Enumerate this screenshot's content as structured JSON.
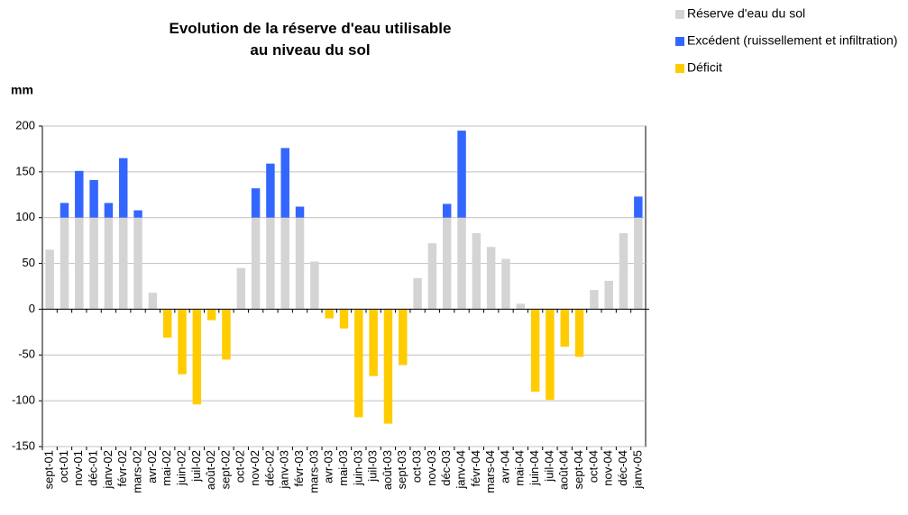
{
  "chart_data": {
    "type": "stacked_bar",
    "title": "Evolution de la réserve d'eau utilisable au niveau du sol",
    "ylabel": "mm",
    "categories": [
      "sept-01",
      "oct-01",
      "nov-01",
      "déc-01",
      "janv-02",
      "févr-02",
      "mars-02",
      "avr-02",
      "mai-02",
      "juin-02",
      "juil-02",
      "août-02",
      "sept-02",
      "oct-02",
      "nov-02",
      "déc-02",
      "janv-03",
      "févr-03",
      "mars-03",
      "avr-03",
      "mai-03",
      "juin-03",
      "juil-03",
      "août-03",
      "sept-03",
      "oct-03",
      "nov-03",
      "déc-03",
      "janv-04",
      "févr-04",
      "mars-04",
      "avr-04",
      "mai-04",
      "juin-04",
      "juil-04",
      "août-04",
      "sept-04",
      "oct-04",
      "nov-04",
      "déc-04",
      "janv-05"
    ],
    "series": [
      {
        "name": "Réserve d'eau du sol",
        "color": "#d4d4d4",
        "values": [
          65,
          100,
          100,
          100,
          100,
          100,
          100,
          18,
          0,
          0,
          0,
          0,
          0,
          45,
          100,
          100,
          100,
          100,
          52,
          0,
          0,
          0,
          0,
          0,
          0,
          34,
          72,
          100,
          100,
          83,
          68,
          55,
          6,
          0,
          0,
          0,
          0,
          21,
          31,
          83,
          100
        ]
      },
      {
        "name": "Excédent (ruissellement et infiltration)",
        "color": "#3366ff",
        "values": [
          0,
          16,
          51,
          41,
          16,
          65,
          8,
          0,
          0,
          0,
          0,
          0,
          0,
          0,
          32,
          59,
          76,
          12,
          0,
          0,
          0,
          0,
          0,
          0,
          0,
          0,
          0,
          15,
          95,
          0,
          0,
          0,
          0,
          0,
          0,
          0,
          0,
          0,
          0,
          0,
          23
        ]
      },
      {
        "name": "Déficit",
        "color": "#ffcc00",
        "values": [
          0,
          0,
          0,
          0,
          0,
          0,
          0,
          0,
          -31,
          -71,
          -104,
          -12,
          -55,
          0,
          0,
          0,
          0,
          0,
          0,
          -10,
          -21,
          -118,
          -73,
          -125,
          -61,
          0,
          0,
          0,
          0,
          0,
          0,
          0,
          0,
          -90,
          -99,
          -41,
          -52,
          0,
          0,
          0,
          0
        ]
      }
    ],
    "ylim": [
      -150,
      200
    ],
    "yticks": [
      -150,
      -100,
      -50,
      0,
      50,
      100,
      150,
      200
    ],
    "grid": true,
    "legend": "top-right"
  }
}
